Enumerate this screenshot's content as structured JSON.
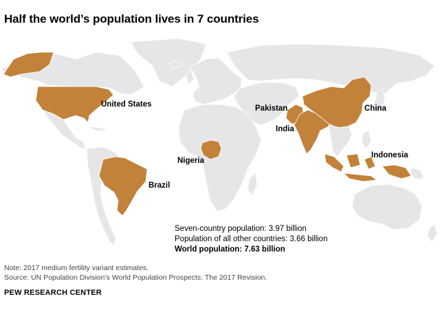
{
  "title": "Half the world’s population lives in 7 countries",
  "countries": {
    "united_states": "United States",
    "brazil": "Brazil",
    "nigeria": "Nigeria",
    "pakistan": "Pakistan",
    "india": "India",
    "china": "China",
    "indonesia": "Indonesia"
  },
  "stats": {
    "seven_country": "Seven-country population: 3.97 billion",
    "other_countries": "Population of all other countries: 3.66 billion",
    "world": "World population: 7.63 billion"
  },
  "notes": {
    "note": "Note: 2017 medium fertility variant estimates.",
    "source": "Source: UN Population Division’s World Population Prospects: The 2017 Revision."
  },
  "brand": "PEW RESEARCH CENTER",
  "colors": {
    "highlight": "#c2823a",
    "land": "#e6e6e8"
  }
}
